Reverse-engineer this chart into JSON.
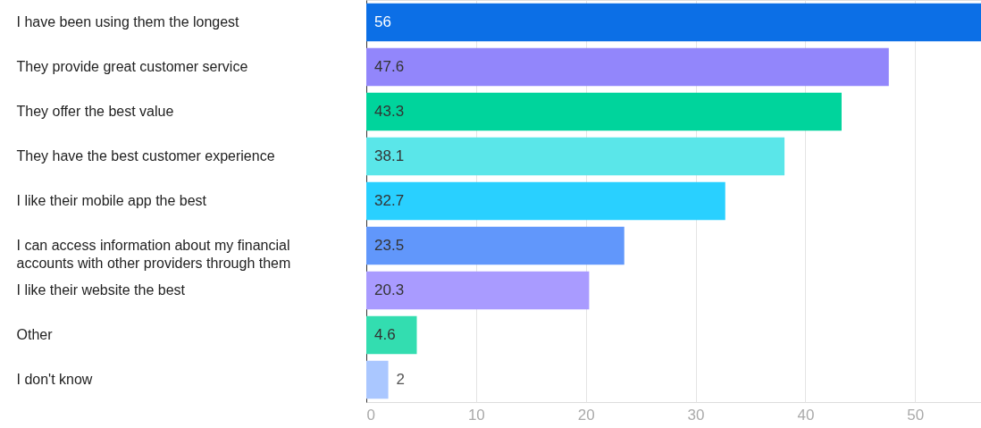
{
  "chart_data": {
    "type": "bar",
    "orientation": "horizontal",
    "categories": [
      "I have been using them the longest",
      "They provide great customer service",
      "They offer the best value",
      "They have the best customer experience",
      "I like their mobile app the best",
      "I can access information about my financial accounts with other providers through them",
      "I like their website the best",
      "Other",
      "I don't know"
    ],
    "values": [
      56,
      47.6,
      43.3,
      38.1,
      32.7,
      23.5,
      20.3,
      4.6,
      2
    ],
    "colors": [
      "#0c6fe6",
      "#9286fb",
      "#00d49c",
      "#5ae6e9",
      "#29d0ff",
      "#6197fb",
      "#a99bff",
      "#33ddb0",
      "#aac7ff"
    ],
    "xlim": [
      0,
      56
    ],
    "xticks": [
      0,
      10,
      20,
      30,
      40,
      50
    ],
    "grid": "x",
    "data_labels": true
  }
}
